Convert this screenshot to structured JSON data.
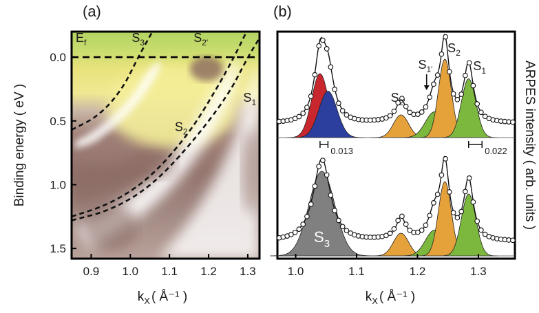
{
  "chart_data": [
    {
      "panel_label": "(a)",
      "type": "heatmap",
      "xlabel": "k",
      "xlabel_sub": "X",
      "xlabel_units": "( Å⁻¹ )",
      "ylabel": "Binding energy ( eV )",
      "xlim": [
        0.85,
        1.33
      ],
      "ylim": [
        1.58,
        -0.2
      ],
      "x_ticks": [
        "0.9",
        "1.0",
        "1.1",
        "1.2",
        "1.3"
      ],
      "y_ticks": [
        "0.0",
        "0.5",
        "1.0",
        "1.5"
      ],
      "colormap": [
        "#8c6b64",
        "#a88880",
        "#d8c8c4",
        "#ffffff",
        "#f6f094",
        "#d8e070",
        "#b6d860"
      ],
      "fermi_label": "E",
      "fermi_label_sub": "f",
      "fermi_level": 0.0,
      "band_labels": [
        {
          "text": "S",
          "sub": "3",
          "k": 1.02,
          "e": -0.12
        },
        {
          "text": "S",
          "sub": "2'",
          "k": 1.18,
          "e": -0.12
        },
        {
          "text": "S",
          "sub": "2",
          "k": 1.13,
          "e": 0.58
        },
        {
          "text": "S",
          "sub": "1",
          "k": 1.305,
          "e": 0.35
        }
      ],
      "dashed_curves": [
        {
          "band": "S3",
          "points": [
            [
              0.85,
              0.57
            ],
            [
              0.92,
              0.46
            ],
            [
              0.98,
              0.25
            ],
            [
              1.02,
              0.0
            ],
            [
              1.06,
              -0.22
            ]
          ]
        },
        {
          "band": "S2",
          "points": [
            [
              0.85,
              1.25
            ],
            [
              0.95,
              1.15
            ],
            [
              1.05,
              0.95
            ],
            [
              1.15,
              0.6
            ],
            [
              1.22,
              0.25
            ],
            [
              1.265,
              0.0
            ],
            [
              1.3,
              -0.22
            ]
          ]
        },
        {
          "band": "S1",
          "points": [
            [
              0.85,
              1.28
            ],
            [
              0.95,
              1.2
            ],
            [
              1.05,
              1.02
            ],
            [
              1.15,
              0.7
            ],
            [
              1.25,
              0.3
            ],
            [
              1.3,
              0.0
            ],
            [
              1.33,
              -0.15
            ]
          ]
        }
      ]
    },
    {
      "panel_label": "(b)",
      "type": "line",
      "xlabel": "k",
      "xlabel_sub": "X",
      "xlabel_units": "( Å⁻¹ )",
      "ylabel": "ARPES intensity ( arb. units )",
      "xlim": [
        0.97,
        1.36
      ],
      "x_ticks": [
        "1.0",
        "1.1",
        "1.2",
        "1.3"
      ],
      "series": [
        {
          "curve": "upper",
          "baseline": 0.0,
          "data_points": [
            1.415,
            1.425,
            1.435,
            1.445,
            1.455,
            1.465,
            1.475,
            1.485,
            1.495,
            1.505,
            1.515,
            1.525,
            1.535,
            1.545,
            1.555,
            1.565,
            1.575,
            1.585,
            1.595,
            1.605,
            1.615,
            1.625,
            1.635,
            1.645,
            1.655,
            1.665,
            1.675,
            1.685,
            1.695,
            1.705
          ],
          "peaks": [
            {
              "name": "red",
              "center": 1.04,
              "amp": 0.62,
              "width": 0.011,
              "color": "#c8282d"
            },
            {
              "name": "blue",
              "center": 1.053,
              "amp": 0.45,
              "width": 0.012,
              "color": "#2c3e9e"
            },
            {
              "name": "S2'",
              "center": 1.173,
              "amp": 0.22,
              "width": 0.01,
              "color": "#e6a23a"
            },
            {
              "name": "S1'",
              "center": 1.228,
              "amp": 0.25,
              "width": 0.012,
              "color": "#7cb83e"
            },
            {
              "name": "S2",
              "center": 1.245,
              "amp": 0.76,
              "width": 0.0085,
              "color": "#e6a23a"
            },
            {
              "name": "S1",
              "center": 1.284,
              "amp": 0.57,
              "width": 0.0095,
              "color": "#7cb83e"
            }
          ],
          "annotations": [
            {
              "text": "0.013",
              "k1": 1.04,
              "k2": 1.053
            },
            {
              "text": "0.022",
              "k1": 1.284,
              "k2": 1.306
            }
          ],
          "labels": [
            {
              "text": "S",
              "sub": "2'"
            },
            {
              "text": "S",
              "sub": "1'"
            },
            {
              "text": "S",
              "sub": "2"
            },
            {
              "text": "S",
              "sub": "1"
            }
          ]
        },
        {
          "curve": "lower",
          "peaks": [
            {
              "name": "S3",
              "center": 1.043,
              "amp": 0.82,
              "width": 0.017,
              "color": "#808080"
            },
            {
              "name": "S2'",
              "center": 1.173,
              "amp": 0.22,
              "width": 0.01,
              "color": "#e6a23a"
            },
            {
              "name": "S1'",
              "center": 1.228,
              "amp": 0.25,
              "width": 0.012,
              "color": "#7cb83e"
            },
            {
              "name": "S2",
              "center": 1.245,
              "amp": 0.72,
              "width": 0.0085,
              "color": "#e6a23a"
            },
            {
              "name": "S1",
              "center": 1.284,
              "amp": 0.6,
              "width": 0.0095,
              "color": "#7cb83e"
            }
          ],
          "labels": [
            {
              "text": "S",
              "sub": "3"
            }
          ]
        }
      ]
    }
  ]
}
